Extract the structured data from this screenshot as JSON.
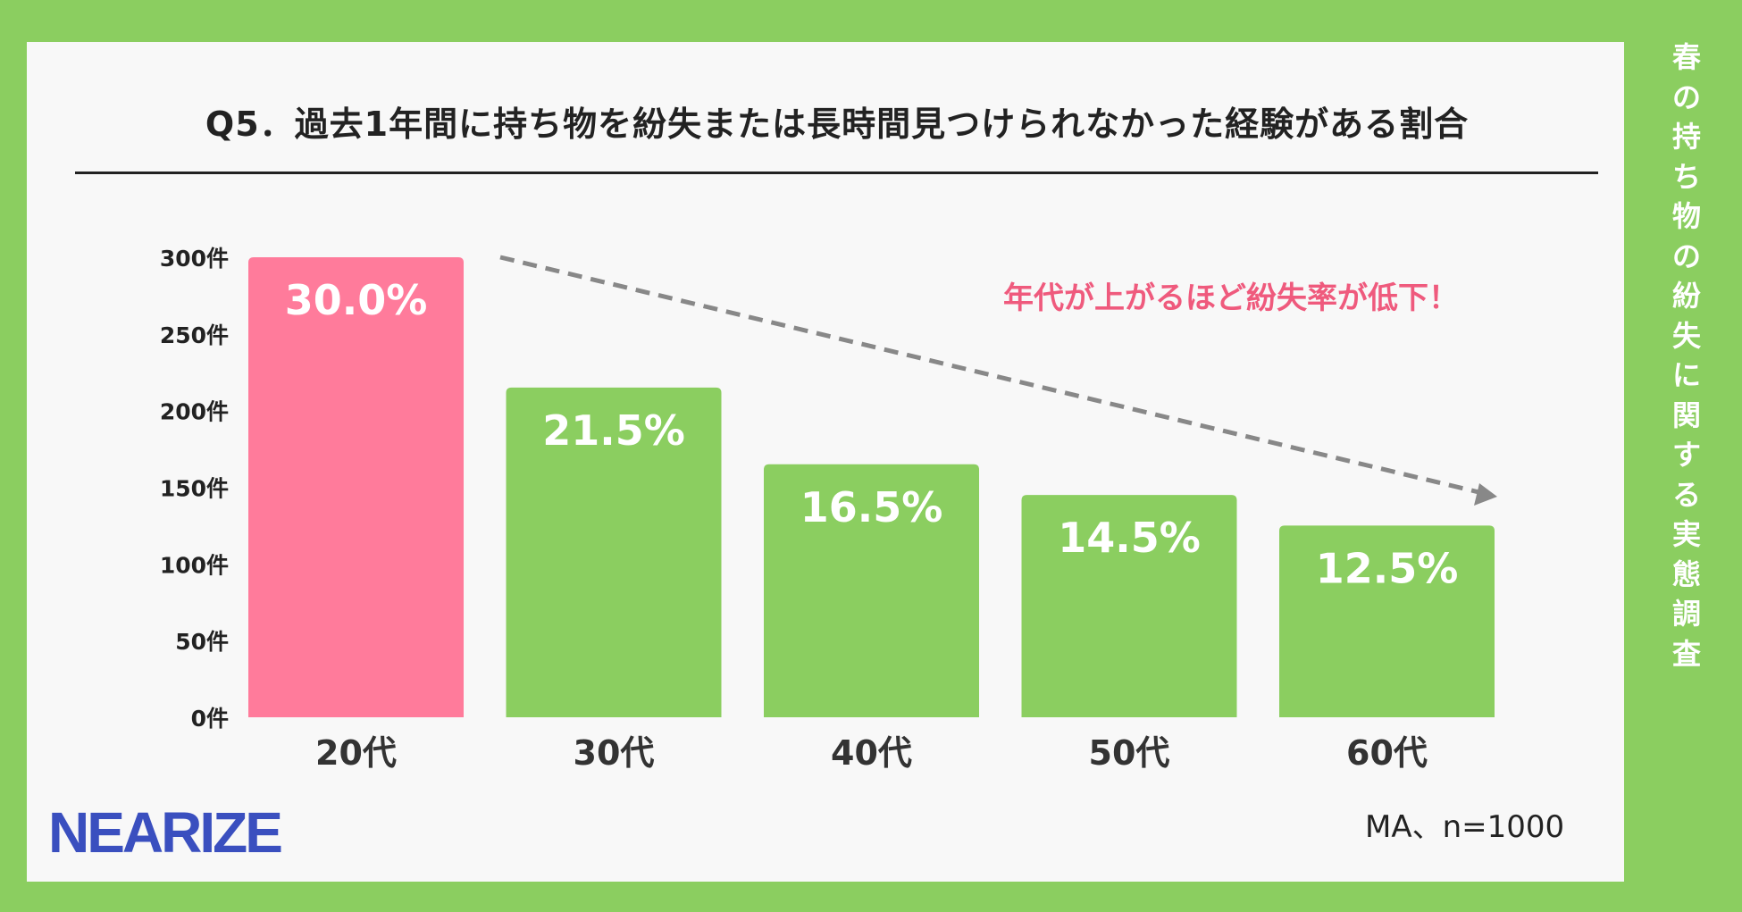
{
  "title": "Q5．過去1年間に持ち物を紛失または長時間見つけられなかった経験がある割合",
  "side_title": "春の持ち物の紛失に関する実態調査",
  "annotation": "年代が上がるほど紛失率が低下！",
  "note": "MA、n=1000",
  "logo": "NEARIZE",
  "colors": {
    "background": "#8bce60",
    "panel": "#f8f8f8",
    "highlight_bar": "#ff7b9b",
    "bar": "#8bce60",
    "annotation": "#ef5a7d",
    "arrow": "#888888"
  },
  "chart_data": {
    "type": "bar",
    "categories": [
      "20代",
      "30代",
      "40代",
      "50代",
      "60代"
    ],
    "values": [
      300,
      215,
      165,
      145,
      125
    ],
    "data_labels": [
      "30.0%",
      "21.5%",
      "16.5%",
      "14.5%",
      "12.5%"
    ],
    "highlight_index": 0,
    "yticks": [
      "0件",
      "50件",
      "100件",
      "150件",
      "200件",
      "250件",
      "300件"
    ],
    "ylim": [
      0,
      300
    ],
    "grid": false,
    "legend": "none"
  }
}
